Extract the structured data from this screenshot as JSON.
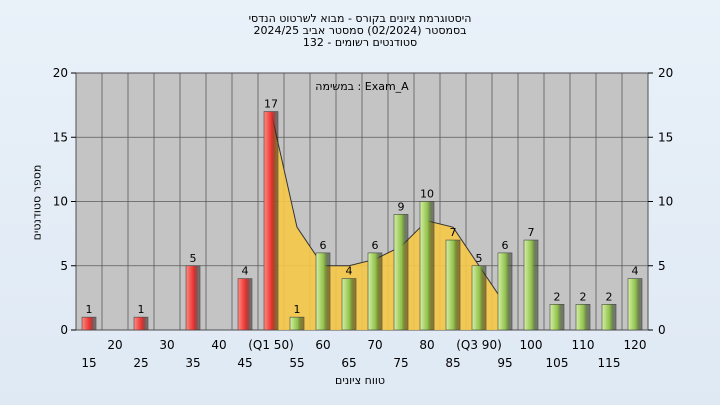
{
  "title_lines": [
    "היסטוגרמת ציונים בקורס - מבוא לשרטוט הנדסי",
    "בסמסטר  (02/2024)  סמסטר אביב 2024/25",
    "סטודנטים רשומים - 132"
  ],
  "colors": {
    "red_bar": "#e8312f",
    "green_bar": "#8fc04a",
    "area_fill": "#f7c948",
    "plot_bg": "#c4c4c4",
    "grid": "#5a5a5a"
  },
  "chart_data": {
    "type": "bar",
    "title": "היסטוגרמת ציונים בקורס - מבוא לשרטוט הנדסי",
    "xlabel": "טווח ציונים",
    "ylabel": "מספר סטודנטים",
    "ylim": [
      0,
      20
    ],
    "yticks": [
      0,
      5,
      10,
      15,
      20
    ],
    "annotation": "במשימה : Exam_A",
    "x_tick_labels_top": [
      "20",
      "30",
      "40",
      "(Q1 50)",
      "60",
      "70",
      "80",
      "(Q3 90)",
      "100",
      "110",
      "120"
    ],
    "x_tick_labels_bottom": [
      "15",
      "25",
      "35",
      "45",
      "55",
      "65",
      "75",
      "85",
      "95",
      "105",
      "115"
    ],
    "categories": [
      "15",
      "20",
      "25",
      "30",
      "35",
      "40",
      "45",
      "50",
      "55",
      "60",
      "65",
      "70",
      "75",
      "80",
      "85",
      "90",
      "95",
      "100",
      "105",
      "110",
      "115",
      "120"
    ],
    "values": [
      1,
      0,
      1,
      0,
      5,
      0,
      4,
      17,
      1,
      6,
      4,
      6,
      9,
      10,
      7,
      5,
      6,
      7,
      2,
      2,
      2,
      4
    ],
    "bar_colors": [
      "red",
      "red",
      "red",
      "red",
      "red",
      "red",
      "red",
      "red",
      "green",
      "green",
      "green",
      "green",
      "green",
      "green",
      "green",
      "green",
      "green",
      "green",
      "green",
      "green",
      "green",
      "green"
    ],
    "area_series": {
      "x": [
        "50",
        "55",
        "60",
        "65",
        "70",
        "75",
        "80",
        "85",
        "90",
        "95"
      ],
      "values": [
        17,
        8,
        5,
        5,
        5.5,
        6.5,
        8.5,
        8,
        5,
        2
      ]
    },
    "grid": true
  }
}
